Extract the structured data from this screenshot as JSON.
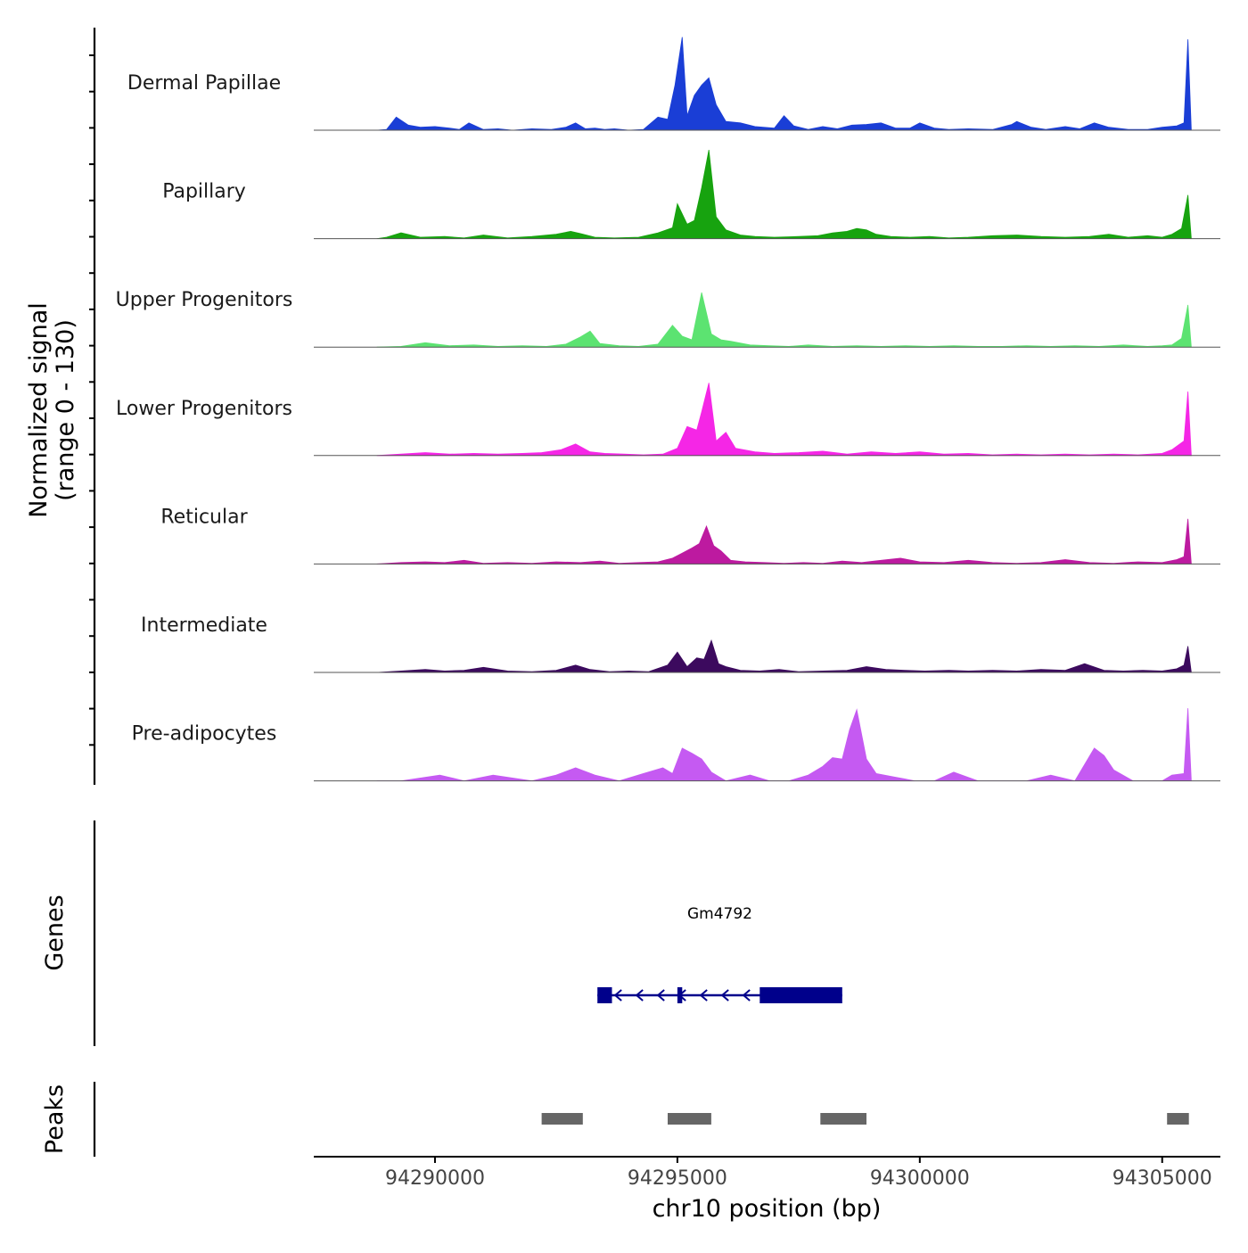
{
  "chart_data": {
    "type": "area",
    "title": "",
    "ylabel_line1": "Normalized signal",
    "ylabel_line2": "(range 0 - 130)",
    "ylim": [
      0,
      130
    ],
    "xlabel": "chr10 position (bp)",
    "xlim": [
      94287500,
      94306200
    ],
    "x_ticks": [
      94290000,
      94295000,
      94300000,
      94305000
    ],
    "x_tick_labels": [
      "94290000",
      "94295000",
      "94300000",
      "94305000"
    ],
    "tracks": [
      {
        "name": "Dermal Papillae",
        "color": "#1a3ed6",
        "x": [
          94288800,
          94289000,
          94289200,
          94289450,
          94289700,
          94290000,
          94290300,
          94290500,
          94290700,
          94291000,
          94291300,
          94291600,
          94292000,
          94292400,
          94292700,
          94292900,
          94293100,
          94293300,
          94293500,
          94293700,
          94294000,
          94294300,
          94294600,
          94294800,
          94294950,
          94295100,
          94295200,
          94295350,
          94295500,
          94295650,
          94295800,
          94296000,
          94296300,
          94296600,
          94297000,
          94297200,
          94297400,
          94297700,
          94298000,
          94298300,
          94298600,
          94298900,
          94299200,
          94299500,
          94299800,
          94300000,
          94300300,
          94300600,
          94301000,
          94301500,
          94301900,
          94302000,
          94302300,
          94302600,
          94303000,
          94303300,
          94303600,
          94303900,
          94304300,
          94304700,
          94305000,
          94305300,
          94305450,
          94305530,
          94305600
        ],
        "values": [
          0,
          1,
          18,
          7,
          4,
          5,
          3,
          1,
          10,
          1,
          2,
          0,
          2,
          1,
          4,
          10,
          2,
          3,
          1,
          2,
          0,
          1,
          18,
          15,
          62,
          128,
          20,
          48,
          62,
          72,
          35,
          12,
          10,
          5,
          3,
          20,
          6,
          1,
          5,
          2,
          7,
          8,
          10,
          3,
          3,
          10,
          3,
          1,
          2,
          1,
          8,
          12,
          4,
          1,
          5,
          2,
          10,
          4,
          1,
          1,
          4,
          6,
          10,
          125,
          0
        ]
      },
      {
        "name": "Papillary",
        "color": "#17a30f",
        "x": [
          94288800,
          94289000,
          94289300,
          94289700,
          94290200,
          94290600,
          94291000,
          94291500,
          94292000,
          94292500,
          94292800,
          94293000,
          94293300,
          94293700,
          94294200,
          94294600,
          94294900,
          94295000,
          94295200,
          94295350,
          94295500,
          94295650,
          94295800,
          94296000,
          94296300,
          94296600,
          94297000,
          94297500,
          94297900,
          94298200,
          94298500,
          94298700,
          94298900,
          94299100,
          94299400,
          94299800,
          94300200,
          94300600,
          94301000,
          94301500,
          94302000,
          94302500,
          94303000,
          94303500,
          94303900,
          94304300,
          94304700,
          94305000,
          94305200,
          94305400,
          94305530,
          94305600
        ],
        "values": [
          0,
          2,
          8,
          2,
          3,
          1,
          5,
          1,
          3,
          6,
          10,
          7,
          2,
          1,
          2,
          8,
          15,
          48,
          20,
          25,
          70,
          122,
          30,
          12,
          5,
          3,
          2,
          3,
          4,
          8,
          10,
          14,
          12,
          6,
          3,
          2,
          3,
          1,
          2,
          4,
          5,
          3,
          2,
          3,
          6,
          2,
          4,
          2,
          6,
          14,
          60,
          0
        ]
      },
      {
        "name": "Upper Progenitors",
        "color": "#5ce371",
        "x": [
          94288800,
          94289300,
          94289800,
          94290300,
          94290800,
          94291300,
          94291800,
          94292300,
          94292700,
          94293000,
          94293200,
          94293400,
          94293800,
          94294200,
          94294600,
          94294900,
          94295100,
          94295300,
          94295500,
          94295700,
          94295900,
          94296100,
          94296500,
          94296900,
          94297300,
          94297700,
          94298200,
          94298700,
          94299200,
          94299700,
          94300200,
          94300700,
          94301200,
          94301700,
          94302200,
          94302700,
          94303200,
          94303700,
          94304200,
          94304700,
          94305000,
          94305200,
          94305400,
          94305530,
          94305600
        ],
        "values": [
          0,
          1,
          6,
          2,
          3,
          1,
          2,
          1,
          4,
          14,
          22,
          5,
          2,
          1,
          4,
          30,
          15,
          10,
          75,
          18,
          10,
          8,
          3,
          2,
          1,
          3,
          1,
          2,
          1,
          2,
          1,
          2,
          1,
          1,
          2,
          1,
          2,
          1,
          3,
          1,
          2,
          3,
          12,
          58,
          0
        ]
      },
      {
        "name": "Lower Progenitors",
        "color": "#f526e6",
        "x": [
          94288800,
          94289300,
          94289800,
          94290300,
          94290800,
          94291300,
          94291800,
          94292200,
          94292600,
          94292900,
          94293200,
          94293500,
          94293900,
          94294300,
          94294700,
          94295000,
          94295200,
          94295400,
          94295500,
          94295650,
          94295800,
          94296000,
          94296200,
          94296600,
          94297000,
          94297500,
          94298000,
          94298500,
          94299000,
          94299500,
          94300000,
          94300500,
          94301000,
          94301500,
          94302000,
          94302500,
          94303000,
          94303500,
          94304000,
          94304500,
          94305000,
          94305200,
          94305450,
          94305530,
          94305600
        ],
        "values": [
          0,
          2,
          4,
          2,
          3,
          2,
          3,
          4,
          8,
          16,
          5,
          3,
          2,
          1,
          2,
          10,
          40,
          35,
          60,
          100,
          20,
          32,
          10,
          5,
          3,
          4,
          6,
          2,
          5,
          3,
          5,
          2,
          3,
          1,
          2,
          1,
          2,
          1,
          2,
          1,
          3,
          8,
          20,
          88,
          0
        ]
      },
      {
        "name": "Reticular",
        "color": "#bd1aa0",
        "x": [
          94288800,
          94289300,
          94289800,
          94290200,
          94290600,
          94291000,
          94291500,
          94292000,
          94292500,
          94293000,
          94293400,
          94293800,
          94294200,
          94294600,
          94294900,
          94295100,
          94295300,
          94295450,
          94295600,
          94295750,
          94295900,
          94296100,
          94296400,
          94296800,
          94297200,
          94297600,
          94298000,
          94298400,
          94298800,
          94299200,
          94299600,
          94300000,
          94300500,
          94301000,
          94301500,
          94302000,
          94302500,
          94303000,
          94303500,
          94304000,
          94304500,
          94305000,
          94305300,
          94305450,
          94305530,
          94305600
        ],
        "values": [
          0,
          2,
          3,
          2,
          5,
          1,
          2,
          1,
          3,
          2,
          4,
          1,
          2,
          3,
          8,
          15,
          22,
          28,
          52,
          25,
          18,
          5,
          3,
          2,
          1,
          2,
          1,
          4,
          2,
          5,
          8,
          3,
          2,
          5,
          2,
          1,
          2,
          6,
          2,
          1,
          3,
          2,
          6,
          10,
          62,
          0
        ]
      },
      {
        "name": "Intermediate",
        "color": "#3c0a5e",
        "x": [
          94288800,
          94289300,
          94289800,
          94290200,
          94290600,
          94291000,
          94291500,
          94292000,
          94292500,
          94292900,
          94293200,
          94293600,
          94294000,
          94294400,
          94294800,
          94295000,
          94295200,
          94295400,
          94295550,
          94295700,
          94295850,
          94296000,
          94296300,
          94296700,
          94297100,
          94297500,
          94298000,
          94298500,
          94298900,
          94299300,
          94299700,
          94300100,
          94300600,
          94301000,
          94301500,
          94302000,
          94302500,
          94303000,
          94303400,
          94303800,
          94304200,
          94304600,
          94305000,
          94305300,
          94305450,
          94305530,
          94305600
        ],
        "values": [
          0,
          2,
          4,
          2,
          3,
          7,
          2,
          1,
          3,
          10,
          4,
          1,
          2,
          1,
          10,
          28,
          8,
          20,
          18,
          44,
          12,
          8,
          3,
          2,
          4,
          1,
          2,
          3,
          8,
          4,
          3,
          2,
          3,
          2,
          3,
          2,
          4,
          3,
          12,
          3,
          2,
          3,
          2,
          5,
          10,
          36,
          0
        ]
      },
      {
        "name": "Pre-adipocytes",
        "color": "#c55af2",
        "x": [
          94288800,
          94289300,
          94290100,
          94290600,
          94291200,
          94292000,
          94292500,
          94292900,
          94293300,
          94293800,
          94294300,
          94294700,
          94294900,
          94295100,
          94295300,
          94295500,
          94295700,
          94296000,
          94296500,
          94296900,
          94297300,
          94297700,
          94298000,
          94298200,
          94298400,
          94298550,
          94298700,
          94298900,
          94299100,
          94299500,
          94299900,
          94300300,
          94300700,
          94301200,
          94301700,
          94302200,
          94302700,
          94303200,
          94303600,
          94303800,
          94304000,
          94304400,
          94305000,
          94305200,
          94305450,
          94305530,
          94305600
        ],
        "values": [
          0,
          0,
          8,
          0,
          8,
          0,
          8,
          18,
          8,
          0,
          10,
          18,
          10,
          45,
          38,
          30,
          12,
          0,
          8,
          0,
          0,
          8,
          20,
          32,
          30,
          70,
          98,
          30,
          10,
          5,
          0,
          0,
          12,
          0,
          0,
          0,
          8,
          0,
          45,
          35,
          15,
          0,
          0,
          8,
          10,
          100,
          0
        ]
      }
    ],
    "genes": [
      {
        "name": "Gm4792",
        "start": 94293350,
        "end": 94298400,
        "strand": "-",
        "exons": [
          [
            94293350,
            94293650
          ],
          [
            94295000,
            94295100
          ],
          [
            94296700,
            94298400
          ]
        ]
      }
    ],
    "peaks": [
      [
        94292200,
        94293050
      ],
      [
        94294800,
        94295700
      ],
      [
        94297950,
        94298900
      ],
      [
        94305100,
        94305550
      ]
    ],
    "track_labels": {
      "genes": "Genes",
      "peaks": "Peaks"
    }
  }
}
